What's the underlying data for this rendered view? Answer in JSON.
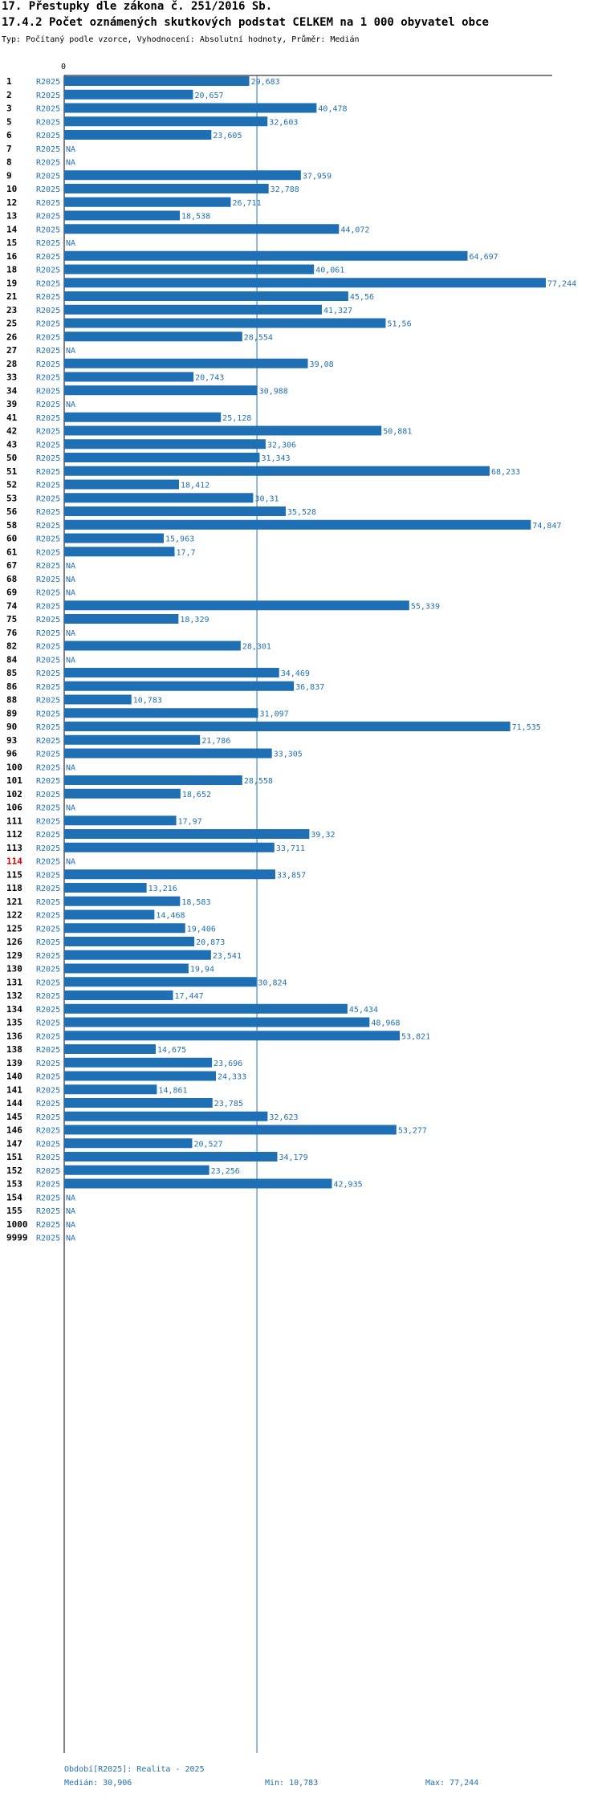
{
  "header": {
    "title1": "17. Přestupky dle zákona č. 251/2016 Sb.",
    "title2": "17.4.2 Počet oznámených skutkových podstat CELKEM na 1 000 obyvatel obce",
    "subtitle": "Typ: Počítaný podle vzorce, Vyhodnocení: Absolutní hodnoty, Průměr: Medián"
  },
  "footer": {
    "period": "Období[R2025]: Realita - 2025",
    "median": "Medián: 30,906",
    "min": "Min: 10,783",
    "max": "Max: 77,244"
  },
  "colors": {
    "bar": "#1f6fb5",
    "text": "#1f6fb5",
    "highlight": "#e00000"
  },
  "chart_data": {
    "type": "bar",
    "orientation": "horizontal",
    "title": "17.4.2 Počet oznámených skutkových podstat CELKEM na 1 000 obyvatel obce",
    "axis_zero_label": "0",
    "xlim": [
      0,
      77.244
    ],
    "median": 30.906,
    "series_label": "R2025",
    "highlighted": "114",
    "na_label": "NA",
    "rows": [
      {
        "id": "1",
        "value": 29.683,
        "label": "29,683"
      },
      {
        "id": "2",
        "value": 20.657,
        "label": "20,657"
      },
      {
        "id": "3",
        "value": 40.478,
        "label": "40,478"
      },
      {
        "id": "5",
        "value": 32.603,
        "label": "32,603"
      },
      {
        "id": "6",
        "value": 23.605,
        "label": "23,605"
      },
      {
        "id": "7",
        "value": null,
        "label": "NA"
      },
      {
        "id": "8",
        "value": null,
        "label": "NA"
      },
      {
        "id": "9",
        "value": 37.959,
        "label": "37,959"
      },
      {
        "id": "10",
        "value": 32.788,
        "label": "32,788"
      },
      {
        "id": "12",
        "value": 26.711,
        "label": "26,711"
      },
      {
        "id": "13",
        "value": 18.538,
        "label": "18,538"
      },
      {
        "id": "14",
        "value": 44.072,
        "label": "44,072"
      },
      {
        "id": "15",
        "value": null,
        "label": "NA"
      },
      {
        "id": "16",
        "value": 64.697,
        "label": "64,697"
      },
      {
        "id": "18",
        "value": 40.061,
        "label": "40,061"
      },
      {
        "id": "19",
        "value": 77.244,
        "label": "77,244"
      },
      {
        "id": "21",
        "value": 45.56,
        "label": "45,56"
      },
      {
        "id": "23",
        "value": 41.327,
        "label": "41,327"
      },
      {
        "id": "25",
        "value": 51.56,
        "label": "51,56"
      },
      {
        "id": "26",
        "value": 28.554,
        "label": "28,554"
      },
      {
        "id": "27",
        "value": null,
        "label": "NA"
      },
      {
        "id": "28",
        "value": 39.08,
        "label": "39,08"
      },
      {
        "id": "33",
        "value": 20.743,
        "label": "20,743"
      },
      {
        "id": "34",
        "value": 30.988,
        "label": "30,988"
      },
      {
        "id": "39",
        "value": null,
        "label": "NA"
      },
      {
        "id": "41",
        "value": 25.128,
        "label": "25,128"
      },
      {
        "id": "42",
        "value": 50.881,
        "label": "50,881"
      },
      {
        "id": "43",
        "value": 32.306,
        "label": "32,306"
      },
      {
        "id": "50",
        "value": 31.343,
        "label": "31,343"
      },
      {
        "id": "51",
        "value": 68.233,
        "label": "68,233"
      },
      {
        "id": "52",
        "value": 18.412,
        "label": "18,412"
      },
      {
        "id": "53",
        "value": 30.31,
        "label": "30,31"
      },
      {
        "id": "56",
        "value": 35.528,
        "label": "35,528"
      },
      {
        "id": "58",
        "value": 74.847,
        "label": "74,847"
      },
      {
        "id": "60",
        "value": 15.963,
        "label": "15,963"
      },
      {
        "id": "61",
        "value": 17.7,
        "label": "17,7"
      },
      {
        "id": "67",
        "value": null,
        "label": "NA"
      },
      {
        "id": "68",
        "value": null,
        "label": "NA"
      },
      {
        "id": "69",
        "value": null,
        "label": "NA"
      },
      {
        "id": "74",
        "value": 55.339,
        "label": "55,339"
      },
      {
        "id": "75",
        "value": 18.329,
        "label": "18,329"
      },
      {
        "id": "76",
        "value": null,
        "label": "NA"
      },
      {
        "id": "82",
        "value": 28.301,
        "label": "28,301"
      },
      {
        "id": "84",
        "value": null,
        "label": "NA"
      },
      {
        "id": "85",
        "value": 34.469,
        "label": "34,469"
      },
      {
        "id": "86",
        "value": 36.837,
        "label": "36,837"
      },
      {
        "id": "88",
        "value": 10.783,
        "label": "10,783"
      },
      {
        "id": "89",
        "value": 31.097,
        "label": "31,097"
      },
      {
        "id": "90",
        "value": 71.535,
        "label": "71,535"
      },
      {
        "id": "93",
        "value": 21.786,
        "label": "21,786"
      },
      {
        "id": "96",
        "value": 33.305,
        "label": "33,305"
      },
      {
        "id": "100",
        "value": null,
        "label": "NA"
      },
      {
        "id": "101",
        "value": 28.558,
        "label": "28,558"
      },
      {
        "id": "102",
        "value": 18.652,
        "label": "18,652"
      },
      {
        "id": "106",
        "value": null,
        "label": "NA"
      },
      {
        "id": "111",
        "value": 17.97,
        "label": "17,97"
      },
      {
        "id": "112",
        "value": 39.32,
        "label": "39,32"
      },
      {
        "id": "113",
        "value": 33.711,
        "label": "33,711"
      },
      {
        "id": "114",
        "value": null,
        "label": "NA"
      },
      {
        "id": "115",
        "value": 33.857,
        "label": "33,857"
      },
      {
        "id": "118",
        "value": 13.216,
        "label": "13,216"
      },
      {
        "id": "121",
        "value": 18.583,
        "label": "18,583"
      },
      {
        "id": "122",
        "value": 14.468,
        "label": "14,468"
      },
      {
        "id": "125",
        "value": 19.406,
        "label": "19,406"
      },
      {
        "id": "126",
        "value": 20.873,
        "label": "20,873"
      },
      {
        "id": "129",
        "value": 23.541,
        "label": "23,541"
      },
      {
        "id": "130",
        "value": 19.94,
        "label": "19,94"
      },
      {
        "id": "131",
        "value": 30.824,
        "label": "30,824"
      },
      {
        "id": "132",
        "value": 17.447,
        "label": "17,447"
      },
      {
        "id": "134",
        "value": 45.434,
        "label": "45,434"
      },
      {
        "id": "135",
        "value": 48.968,
        "label": "48,968"
      },
      {
        "id": "136",
        "value": 53.821,
        "label": "53,821"
      },
      {
        "id": "138",
        "value": 14.675,
        "label": "14,675"
      },
      {
        "id": "139",
        "value": 23.696,
        "label": "23,696"
      },
      {
        "id": "140",
        "value": 24.333,
        "label": "24,333"
      },
      {
        "id": "141",
        "value": 14.861,
        "label": "14,861"
      },
      {
        "id": "144",
        "value": 23.785,
        "label": "23,785"
      },
      {
        "id": "145",
        "value": 32.623,
        "label": "32,623"
      },
      {
        "id": "146",
        "value": 53.277,
        "label": "53,277"
      },
      {
        "id": "147",
        "value": 20.527,
        "label": "20,527"
      },
      {
        "id": "151",
        "value": 34.179,
        "label": "34,179"
      },
      {
        "id": "152",
        "value": 23.256,
        "label": "23,256"
      },
      {
        "id": "153",
        "value": 42.935,
        "label": "42,935"
      },
      {
        "id": "154",
        "value": null,
        "label": "NA"
      },
      {
        "id": "155",
        "value": null,
        "label": "NA"
      },
      {
        "id": "1000",
        "value": null,
        "label": "NA"
      },
      {
        "id": "9999",
        "value": null,
        "label": "NA"
      }
    ]
  }
}
